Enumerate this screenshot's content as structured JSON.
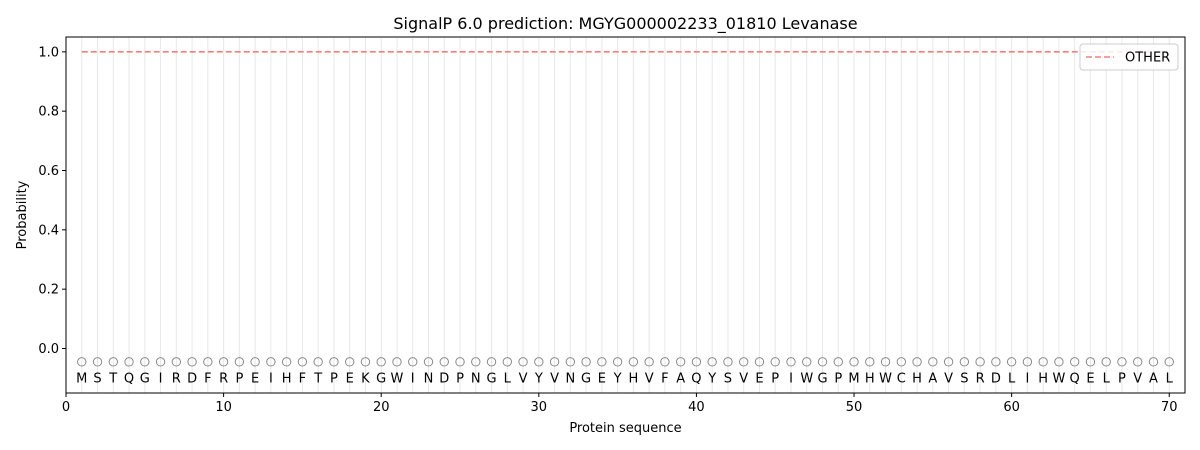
{
  "chart_data": {
    "type": "line",
    "title": "SignalP 6.0 prediction: MGYG000002233_01810 Levanase",
    "xlabel": "Protein sequence",
    "ylabel": "Probability",
    "xlim": [
      0,
      71
    ],
    "ylim": [
      -0.15,
      1.05
    ],
    "xticks": [
      0,
      10,
      20,
      30,
      40,
      50,
      60,
      70
    ],
    "yticks": [
      0.0,
      0.2,
      0.4,
      0.6,
      0.8,
      1.0
    ],
    "x": [
      1,
      70
    ],
    "series": [
      {
        "name": "OTHER",
        "values": [
          1.0,
          1.0
        ],
        "color": "#f08080",
        "style": "dashed"
      }
    ],
    "legend_position": "top-right",
    "sequence": "MSTQGIRDFRPEIHFTPEKGWINDPNGLVYVNGEYHVFAQYSVEPIWGPMHWCHAVSRDLIHWQELPVAL",
    "region_label": "O",
    "grid": "vertical lines at each residue"
  }
}
